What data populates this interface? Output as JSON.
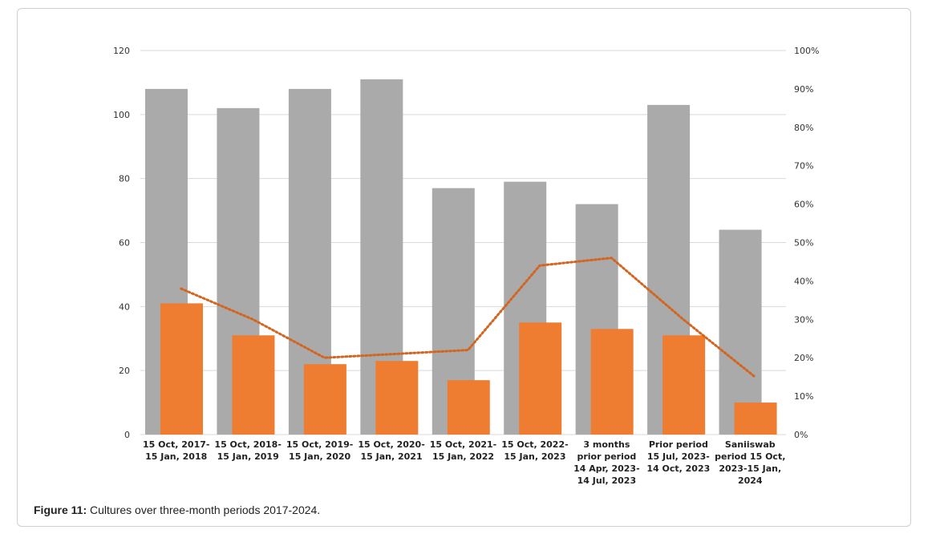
{
  "caption": {
    "label": "Figure 11:",
    "text": " Cultures over three-month periods 2017-2024."
  },
  "colors": {
    "gray_bar": "#aaaaaa",
    "orange_bar": "#ef7d31",
    "line": "#d2651f",
    "grid": "#d9d9d9"
  },
  "chart_data": {
    "type": "bar",
    "title": "",
    "xlabel": "",
    "ylabel": "",
    "ylim": [
      0,
      120
    ],
    "y2lim": [
      0,
      1
    ],
    "y_ticks": [
      "0",
      "20",
      "40",
      "60",
      "80",
      "100",
      "120"
    ],
    "y2_ticks": [
      "0%",
      "10%",
      "20%",
      "30%",
      "40%",
      "50%",
      "60%",
      "70%",
      "80%",
      "90%",
      "100%"
    ],
    "categories": [
      [
        "15 Oct, 2017-",
        "15 Jan, 2018"
      ],
      [
        "15 Oct, 2018-",
        "15 Jan, 2019"
      ],
      [
        "15 Oct, 2019-",
        "15 Jan, 2020"
      ],
      [
        "15 Oct, 2020-",
        "15 Jan, 2021"
      ],
      [
        "15 Oct, 2021-",
        "15 Jan, 2022"
      ],
      [
        "15 Oct, 2022-",
        "15 Jan, 2023"
      ],
      [
        "3 months",
        "prior period",
        "14 Apr, 2023-",
        "14 Jul, 2023"
      ],
      [
        "Prior period",
        "15 Jul, 2023-",
        "14 Oct, 2023"
      ],
      [
        "Saniiswab",
        "period 15 Oct,",
        "2023-15 Jan,",
        "2024"
      ]
    ],
    "series": [
      {
        "type": "bar",
        "axis": "left",
        "values": [
          108,
          102,
          108,
          111,
          77,
          79,
          72,
          103,
          64
        ]
      },
      {
        "type": "bar",
        "axis": "left",
        "values": [
          41,
          31,
          22,
          23,
          17,
          35,
          33,
          31,
          10
        ]
      },
      {
        "type": "line",
        "axis": "right",
        "style": "dotted",
        "values": [
          0.38,
          0.3,
          0.2,
          0.21,
          0.22,
          0.44,
          0.46,
          0.3,
          0.15
        ]
      }
    ],
    "grid": "horizontal"
  }
}
